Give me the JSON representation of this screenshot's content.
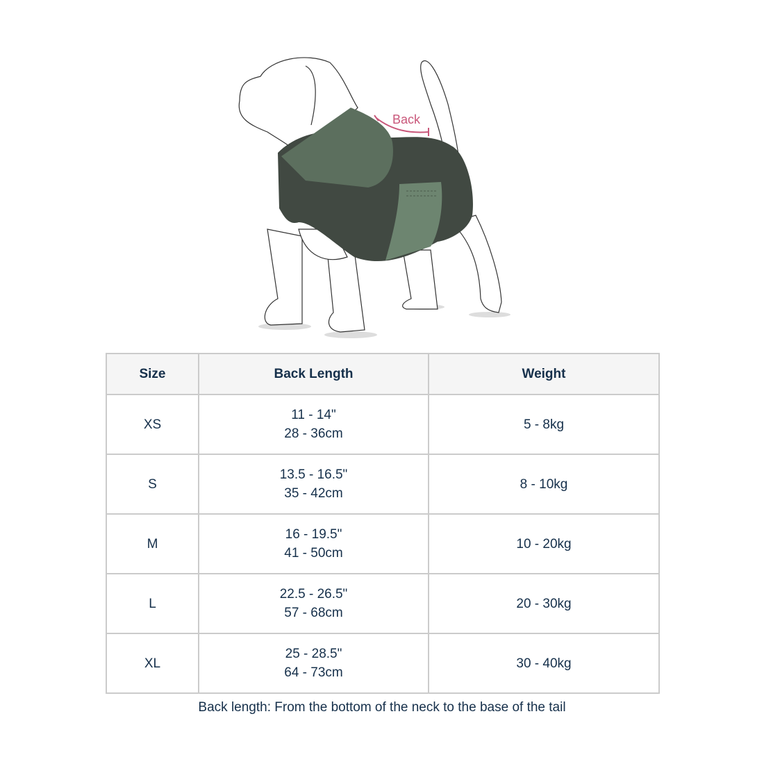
{
  "illustration": {
    "measure_label": "Back",
    "measure_color": "#c9577a",
    "coat_colors": [
      "#5c6f5e",
      "#414942",
      "#6d8570"
    ]
  },
  "table": {
    "headers": [
      "Size",
      "Back Length",
      "Weight"
    ],
    "rows": [
      {
        "size": "XS",
        "length_in": "11 - 14\"",
        "length_cm": "28 - 36cm",
        "weight": "5 - 8kg"
      },
      {
        "size": "S",
        "length_in": "13.5 - 16.5\"",
        "length_cm": "35 - 42cm",
        "weight": "8 - 10kg"
      },
      {
        "size": "M",
        "length_in": "16 - 19.5\"",
        "length_cm": "41 - 50cm",
        "weight": "10 - 20kg"
      },
      {
        "size": "L",
        "length_in": "22.5 - 26.5\"",
        "length_cm": "57 - 68cm",
        "weight": "20 - 30kg"
      },
      {
        "size": "XL",
        "length_in": "25 - 28.5\"",
        "length_cm": "64 - 73cm",
        "weight": "30 - 40kg"
      }
    ]
  },
  "caption": "Back length: From the bottom of the neck to the base of the tail"
}
